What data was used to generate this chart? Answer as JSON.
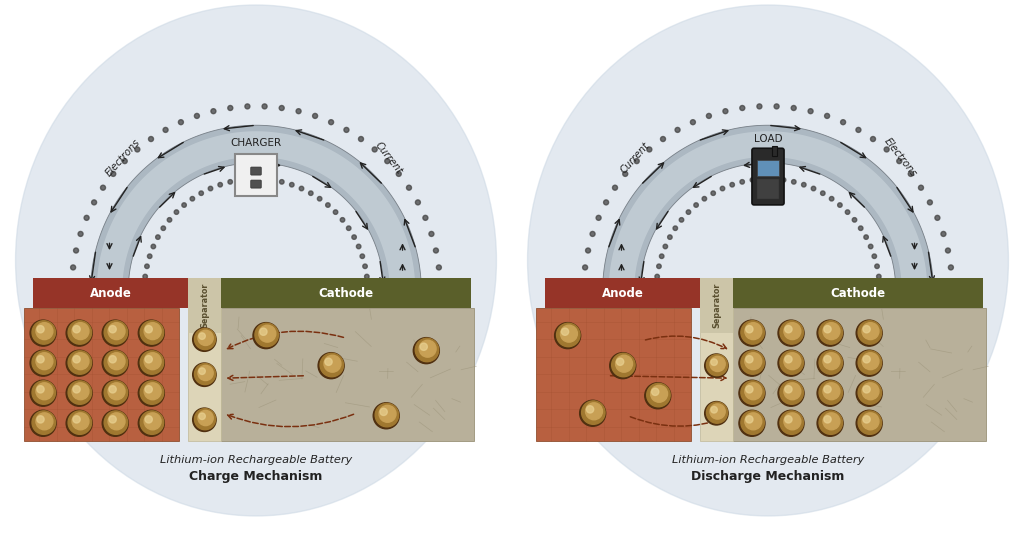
{
  "bg_color": "#ffffff",
  "glow_color": "#ccd8e4",
  "anode_color": "#963428",
  "cathode_color": "#5a5f2a",
  "separator_color": "#ccc5a8",
  "anode_body_color": "#b86040",
  "cathode_body_color": "#b8b09a",
  "sphere_outer": "#c8a055",
  "sphere_mid": "#a07830",
  "sphere_dark": "#503010",
  "arc_gray": "#a8b4be",
  "arc_light": "#d0dae0",
  "arrow_color": "#222222",
  "dot_color": "#444444",
  "text_color": "#222222",
  "dashed_arrow_color": "#7a3010",
  "charge_title1": "Lithium-ion Rechargeable Battery",
  "charge_title2": "Charge Mechanism",
  "discharge_title1": "Lithium-ion Rechargeable Battery",
  "discharge_title2": "Discharge Mechanism",
  "charger_label": "CHARGER",
  "load_label": "LOAD",
  "anode_label": "Anode",
  "cathode_label": "Cathode",
  "separator_label": "Separator",
  "electrons_label": "Electrons",
  "current_label": "Current"
}
